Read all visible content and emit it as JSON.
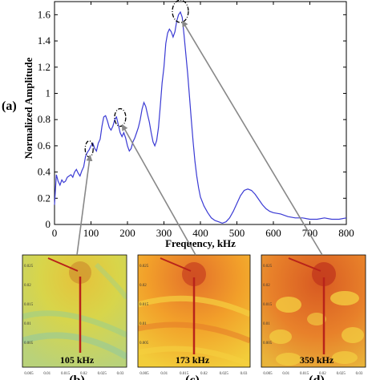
{
  "chart_data": {
    "type": "line",
    "panel_label": "(a)",
    "xlabel": "Frequency, kHz",
    "ylabel": "Normalized Amplitude",
    "xlim": [
      0,
      800
    ],
    "ylim": [
      0,
      1.7
    ],
    "x_ticks": [
      0,
      100,
      200,
      300,
      400,
      500,
      600,
      700,
      800
    ],
    "y_ticks": [
      0,
      0.2,
      0.4,
      0.6,
      0.8,
      1,
      1.2,
      1.4,
      1.6
    ],
    "series": [
      {
        "color": "#3a3ad4",
        "x": [
          0,
          5,
          10,
          15,
          20,
          25,
          30,
          35,
          40,
          45,
          50,
          55,
          60,
          65,
          70,
          75,
          80,
          85,
          90,
          95,
          100,
          105,
          110,
          115,
          120,
          125,
          130,
          135,
          140,
          145,
          150,
          155,
          160,
          165,
          170,
          175,
          180,
          185,
          190,
          195,
          200,
          205,
          210,
          215,
          220,
          225,
          230,
          235,
          240,
          245,
          250,
          255,
          260,
          265,
          270,
          275,
          280,
          285,
          290,
          295,
          300,
          305,
          310,
          315,
          320,
          325,
          330,
          335,
          340,
          345,
          350,
          355,
          360,
          365,
          370,
          375,
          380,
          385,
          390,
          395,
          400,
          410,
          420,
          430,
          440,
          450,
          460,
          470,
          480,
          490,
          500,
          510,
          520,
          530,
          540,
          550,
          560,
          570,
          580,
          590,
          600,
          620,
          640,
          660,
          680,
          700,
          720,
          740,
          760,
          780,
          800
        ],
        "y": [
          0.15,
          0.38,
          0.33,
          0.3,
          0.34,
          0.32,
          0.33,
          0.36,
          0.37,
          0.38,
          0.36,
          0.4,
          0.42,
          0.39,
          0.37,
          0.41,
          0.44,
          0.52,
          0.55,
          0.57,
          0.6,
          0.62,
          0.58,
          0.56,
          0.62,
          0.65,
          0.75,
          0.82,
          0.83,
          0.79,
          0.74,
          0.72,
          0.75,
          0.8,
          0.82,
          0.76,
          0.7,
          0.67,
          0.7,
          0.66,
          0.6,
          0.56,
          0.58,
          0.63,
          0.66,
          0.7,
          0.74,
          0.8,
          0.88,
          0.93,
          0.9,
          0.84,
          0.78,
          0.7,
          0.63,
          0.6,
          0.64,
          0.74,
          0.9,
          1.08,
          1.2,
          1.38,
          1.46,
          1.49,
          1.47,
          1.43,
          1.47,
          1.55,
          1.6,
          1.62,
          1.58,
          1.45,
          1.3,
          1.15,
          0.98,
          0.8,
          0.63,
          0.48,
          0.37,
          0.28,
          0.21,
          0.14,
          0.09,
          0.05,
          0.03,
          0.02,
          0.01,
          0.02,
          0.05,
          0.1,
          0.16,
          0.22,
          0.26,
          0.27,
          0.26,
          0.23,
          0.19,
          0.15,
          0.12,
          0.1,
          0.09,
          0.08,
          0.06,
          0.05,
          0.05,
          0.04,
          0.04,
          0.05,
          0.04,
          0.04,
          0.05
        ]
      }
    ],
    "highlights": [
      {
        "x": 95,
        "y": 0.57
      },
      {
        "x": 180,
        "y": 0.81
      },
      {
        "x": 345,
        "y": 1.62
      }
    ],
    "insets": [
      {
        "tag": "(b)",
        "label": "105 kHz",
        "palette": "low"
      },
      {
        "tag": "(c)",
        "label": "173 kHz",
        "palette": "mid"
      },
      {
        "tag": "(d)",
        "label": "359 kHz",
        "palette": "high"
      }
    ],
    "inset_axis_text": {
      "x_ticks": [
        "0.005",
        "0.01",
        "0.015",
        "0.02",
        "0.025",
        "0.03"
      ],
      "y_ticks": [
        "0.025",
        "0.02",
        "0.015",
        "0.01",
        "0.005"
      ]
    },
    "colors": {
      "axis": "#000000",
      "arrow": "#888888",
      "low_field": "#d8d54a",
      "mid_field": "#f2a02a",
      "high_field": "#e8812a",
      "crack": "#b8231a"
    }
  }
}
